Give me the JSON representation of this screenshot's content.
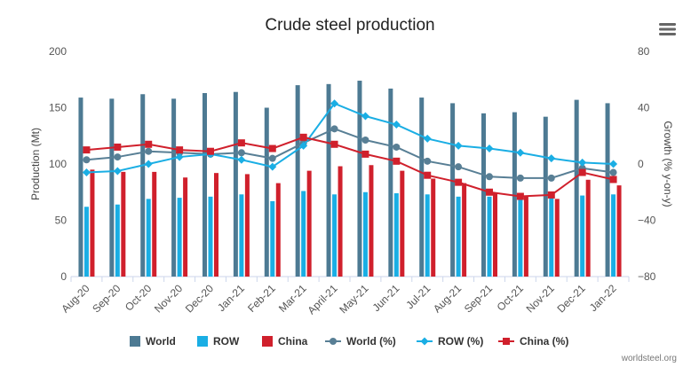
{
  "chart_data": {
    "type": "bar",
    "title": "Crude steel production",
    "ylabel_left": "Production (Mt)",
    "ylabel_right": "Growth (% y-on-y)",
    "ylim_left": [
      0,
      200
    ],
    "yticks_left": [
      "0",
      "50",
      "100",
      "150",
      "200"
    ],
    "ylim_right": [
      -80,
      80
    ],
    "yticks_right": [
      "−80",
      "−40",
      "0",
      "40",
      "80"
    ],
    "grid": false,
    "categories": [
      "Aug-20",
      "Sep-20",
      "Oct-20",
      "Nov-20",
      "Dec-20",
      "Jan-21",
      "Feb-21",
      "Mar-21",
      "April-21",
      "May-21",
      "Jun-21",
      "Jul-21",
      "Aug-21",
      "Sep-21",
      "Oct-21",
      "Nov-21",
      "Dec-21",
      "Jan-22"
    ],
    "bar_series": [
      {
        "name": "World",
        "color": "#4d7a93",
        "values": [
          159,
          158,
          162,
          158,
          163,
          164,
          150,
          170,
          171,
          174,
          167,
          159,
          154,
          145,
          146,
          142,
          157,
          154
        ]
      },
      {
        "name": "ROW",
        "color": "#1aaee4",
        "values": [
          62,
          64,
          69,
          70,
          71,
          73,
          67,
          76,
          73,
          75,
          74,
          73,
          71,
          71,
          70,
          70,
          72,
          73
        ]
      },
      {
        "name": "China",
        "color": "#d0202c",
        "values": [
          95,
          93,
          93,
          88,
          92,
          91,
          83,
          94,
          98,
          99,
          94,
          87,
          83,
          74,
          72,
          69,
          86,
          81
        ]
      }
    ],
    "line_series": [
      {
        "name": "World (%)",
        "color": "#587f95",
        "marker": "circle",
        "values": [
          3,
          5,
          9,
          8,
          7,
          8,
          4,
          15,
          25,
          17,
          12,
          2,
          -2,
          -9,
          -10,
          -10,
          -3,
          -6
        ]
      },
      {
        "name": "ROW (%)",
        "color": "#1aaee4",
        "marker": "diamond",
        "values": [
          -6,
          -5,
          0,
          5,
          7,
          3,
          -2,
          13,
          43,
          34,
          28,
          18,
          13,
          11,
          8,
          4,
          1,
          0
        ]
      },
      {
        "name": "China (%)",
        "color": "#d0202c",
        "marker": "square",
        "values": [
          10,
          12,
          14,
          10,
          9,
          15,
          11,
          19,
          14,
          7,
          2,
          -8,
          -13,
          -20,
          -23,
          -22,
          -6,
          -11
        ]
      }
    ],
    "legend": [
      "World",
      "ROW",
      "China",
      "World (%)",
      "ROW (%)",
      "China (%)"
    ],
    "legend_position": "bottom",
    "credit": "worldsteel.org"
  },
  "icons": {
    "menu": "hamburger-menu-icon"
  }
}
